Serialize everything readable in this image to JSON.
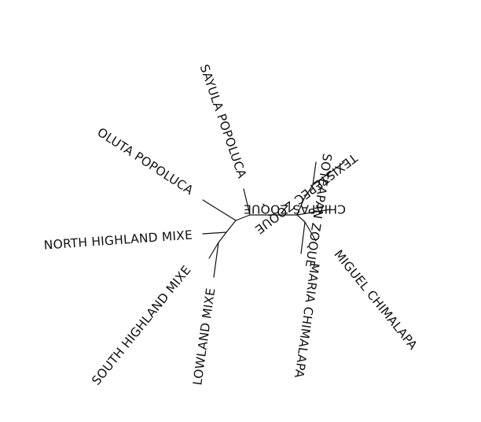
{
  "diagram": {
    "type": "unrooted-phylogenetic-tree",
    "line_color": "#111111",
    "background": "#ffffff",
    "leaves": [
      {
        "id": "sayula",
        "label": "SAYULA POPOLUCA"
      },
      {
        "id": "oluta",
        "label": "OLUTA POPOLUCA"
      },
      {
        "id": "north-highland",
        "label": "NORTH HIGHLAND MIXE"
      },
      {
        "id": "south-highland",
        "label": "SOUTH HIGHLAND MIXE"
      },
      {
        "id": "lowland",
        "label": "LOWLAND MIXE"
      },
      {
        "id": "maria",
        "label": "MARIA CHIMALAPA"
      },
      {
        "id": "miguel",
        "label": "MIGUEL CHIMALAPA"
      },
      {
        "id": "chiapas",
        "label": "CHIAPAS ZOQUE"
      },
      {
        "id": "texistepec",
        "label": "TEXISTEPEC ZOQUE"
      },
      {
        "id": "soteapan",
        "label": "SOTEAPAN ZOQUE"
      }
    ]
  }
}
